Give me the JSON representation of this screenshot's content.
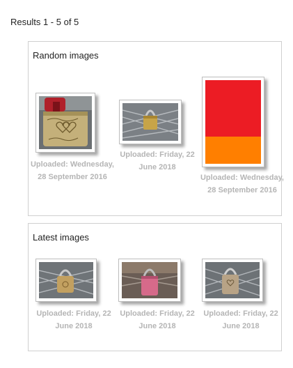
{
  "results": {
    "text": "Results 1 - 5 of 5"
  },
  "random": {
    "title": "Random images",
    "items": [
      {
        "name": "lock-engraved-red",
        "uploaded": "Uploaded: Wednesday, 28 September 2016"
      },
      {
        "name": "lock-gold-fence",
        "uploaded": "Uploaded: Friday, 22 June 2018"
      },
      {
        "name": "red-orange-image",
        "uploaded": "Uploaded: Wednesday, 28 September 2016"
      }
    ]
  },
  "latest": {
    "title": "Latest images",
    "items": [
      {
        "name": "lock-brass",
        "uploaded": "Uploaded: Friday, 22 June 2018"
      },
      {
        "name": "lock-pink",
        "uploaded": "Uploaded: Friday, 22 June 2018"
      },
      {
        "name": "lock-heart",
        "uploaded": "Uploaded: Friday, 22 June 2018"
      }
    ]
  },
  "colors": {
    "panel_border": "#cfcfcf",
    "caption": "#b5b5b5",
    "swatch_red": "#ec1c24",
    "swatch_orange": "#ff7f00"
  }
}
